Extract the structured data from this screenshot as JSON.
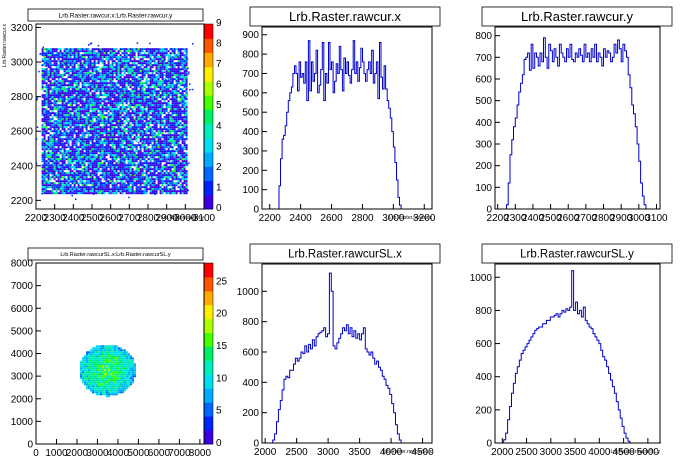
{
  "chart_data": [
    {
      "type": "heatmap",
      "title": "Lrb.Raster.rawcur.x:Lrb.Raster.rawcur.y",
      "xlabel": "Lrb.Raster.rawcur.y",
      "ylabel": "Lrb.Raster.rawcur.x",
      "xlim": [
        2200,
        3100
      ],
      "ylim": [
        2150,
        3220
      ],
      "xticks": [
        "2200",
        "2300",
        "2400",
        "2500",
        "2600",
        "2700",
        "2800",
        "2900",
        "3000",
        "3100"
      ],
      "yticks": [
        "2200",
        "2400",
        "2600",
        "2800",
        "3000",
        "3200"
      ],
      "colorbar": {
        "min": 0,
        "max": 9,
        "ticks": [
          "0",
          "1",
          "2",
          "3",
          "4",
          "5",
          "6",
          "7",
          "8",
          "9"
        ]
      },
      "region": {
        "x": [
          2230,
          3010
        ],
        "y": [
          2240,
          3080
        ],
        "shape": "rectangle"
      }
    },
    {
      "type": "line",
      "title": "Lrb.Raster.rawcur.x",
      "xlabel": "Lrb.Raster.rawcur.x",
      "xlim": [
        2150,
        3250
      ],
      "ylim": [
        0,
        940
      ],
      "xticks": [
        "2200",
        "2400",
        "2600",
        "2800",
        "3000",
        "3200"
      ],
      "yticks": [
        "0",
        "100",
        "200",
        "300",
        "400",
        "500",
        "600",
        "700",
        "800",
        "900"
      ],
      "x_start": 2200,
      "bin_width": 10,
      "values": [
        0,
        0,
        0,
        0,
        0,
        0,
        120,
        260,
        360,
        380,
        430,
        500,
        560,
        600,
        630,
        700,
        740,
        700,
        610,
        760,
        680,
        700,
        650,
        760,
        560,
        870,
        610,
        760,
        660,
        700,
        820,
        600,
        640,
        720,
        860,
        560,
        700,
        650,
        860,
        720,
        760,
        600,
        660,
        750,
        700,
        840,
        720,
        610,
        780,
        700,
        760,
        690,
        650,
        720,
        870,
        700,
        760,
        660,
        730,
        830,
        760,
        700,
        660,
        720,
        760,
        700,
        820,
        650,
        700,
        760,
        570,
        860,
        680,
        620,
        740,
        620,
        560,
        520,
        470,
        400,
        320,
        240,
        150,
        60,
        20,
        0,
        0
      ]
    },
    {
      "type": "line",
      "title": "Lrb.Raster.rawcur.y",
      "xlabel": "",
      "xlim": [
        2185,
        3120
      ],
      "ylim": [
        0,
        840
      ],
      "xticks": [
        "2200",
        "2300",
        "2400",
        "2500",
        "2600",
        "2700",
        "2800",
        "2900",
        "3000",
        "3100"
      ],
      "yticks": [
        "0",
        "100",
        "200",
        "300",
        "400",
        "500",
        "600",
        "700",
        "800"
      ],
      "x_start": 2200,
      "bin_width": 10,
      "values": [
        0,
        0,
        0,
        0,
        0,
        20,
        120,
        250,
        320,
        380,
        420,
        480,
        540,
        580,
        620,
        690,
        700,
        720,
        640,
        760,
        650,
        720,
        700,
        660,
        720,
        680,
        790,
        700,
        650,
        760,
        730,
        680,
        740,
        700,
        660,
        760,
        720,
        700,
        680,
        740,
        700,
        760,
        690,
        680,
        720,
        700,
        740,
        710,
        680,
        760,
        700,
        720,
        680,
        740,
        700,
        760,
        680,
        720,
        700,
        660,
        740,
        700,
        730,
        720,
        680,
        700,
        760,
        720,
        780,
        740,
        680,
        760,
        730,
        700,
        620,
        560,
        480,
        440,
        380,
        300,
        220,
        120,
        60,
        20,
        0
      ]
    },
    {
      "type": "heatmap",
      "title": "Lrb.Raster.rawcurSL.x:Lrb.Raster.rawcurSL.y",
      "xlabel": "",
      "ylabel": "",
      "xlim": [
        0,
        8200
      ],
      "ylim": [
        0,
        8000
      ],
      "xticks": [
        "0",
        "1000",
        "2000",
        "3000",
        "4000",
        "5000",
        "6000",
        "7000",
        "8000"
      ],
      "yticks": [
        "0",
        "1000",
        "2000",
        "3000",
        "4000",
        "5000",
        "6000",
        "7000",
        "8000"
      ],
      "colorbar": {
        "min": 0,
        "max": 28,
        "ticks": [
          "0",
          "5",
          "10",
          "15",
          "20",
          "25"
        ]
      },
      "region": {
        "cx": 3450,
        "cy": 3300,
        "rx": 1400,
        "ry": 1150,
        "shape": "ellipse"
      }
    },
    {
      "type": "line",
      "title": "Lrb.Raster.rawcurSL.x",
      "xlabel": "Lrb.Raster.rawcurSL.x",
      "xlim": [
        1950,
        4650
      ],
      "ylim": [
        0,
        1180
      ],
      "xticks": [
        "2000",
        "2500",
        "3000",
        "3500",
        "4000",
        "4500"
      ],
      "yticks": [
        "0",
        "200",
        "400",
        "600",
        "800",
        "1000"
      ],
      "x_start": 2000,
      "bin_width": 30,
      "values": [
        0,
        0,
        0,
        0,
        20,
        60,
        140,
        220,
        280,
        350,
        420,
        440,
        430,
        480,
        480,
        520,
        560,
        540,
        560,
        600,
        590,
        640,
        600,
        650,
        620,
        680,
        640,
        700,
        720,
        730,
        740,
        760,
        700,
        720,
        1120,
        1000,
        640,
        620,
        660,
        690,
        720,
        760,
        740,
        780,
        720,
        760,
        700,
        740,
        690,
        720,
        680,
        720,
        760,
        620,
        600,
        580,
        600,
        560,
        520,
        540,
        500,
        480,
        440,
        420,
        380,
        360,
        320,
        260,
        200,
        120,
        60,
        20,
        0,
        0,
        0
      ]
    },
    {
      "type": "line",
      "title": "Lrb.Raster.rawcurSL.y",
      "xlabel": "Lrb.Raster.rawcurSL.y",
      "xlim": [
        1850,
        5250
      ],
      "ylim": [
        0,
        1080
      ],
      "xticks": [
        "2000",
        "2500",
        "3000",
        "3500",
        "4000",
        "4500",
        "5000"
      ],
      "yticks": [
        "0",
        "200",
        "400",
        "600",
        "800",
        "1000"
      ],
      "x_start": 1950,
      "bin_width": 40,
      "values": [
        0,
        0,
        20,
        60,
        140,
        220,
        300,
        360,
        420,
        460,
        500,
        540,
        560,
        580,
        600,
        620,
        640,
        660,
        680,
        690,
        700,
        700,
        720,
        720,
        740,
        740,
        760,
        760,
        770,
        780,
        760,
        780,
        800,
        790,
        810,
        800,
        820,
        1040,
        800,
        850,
        780,
        800,
        760,
        820,
        740,
        720,
        700,
        690,
        660,
        640,
        620,
        600,
        560,
        520,
        500,
        460,
        420,
        380,
        340,
        300,
        250,
        200,
        150,
        100,
        60,
        30,
        10,
        0,
        0,
        0,
        0,
        0,
        0,
        0,
        0,
        0,
        0,
        0,
        0,
        0,
        0,
        0,
        0
      ]
    }
  ]
}
